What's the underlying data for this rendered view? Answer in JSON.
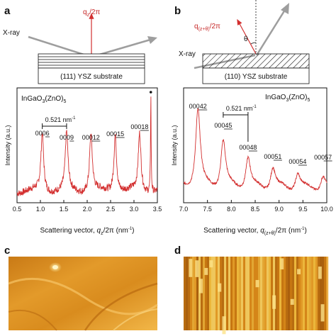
{
  "panels": {
    "a": {
      "letter": "a",
      "xray_label": "X-ray",
      "q_label": "q₂/2π",
      "q_label_main": "q",
      "q_label_sub": "z",
      "q_label_tail": "/2π",
      "substrate_label": "(111) YSZ substrate"
    },
    "b": {
      "letter": "b",
      "xray_label": "X-ray",
      "q_label_main": "q",
      "q_label_sub": "(z+θ)",
      "q_label_tail": "/2π",
      "theta_label": "θ",
      "substrate_label": "(110) YSZ substrate"
    },
    "c": {
      "letter": "c"
    },
    "d": {
      "letter": "d"
    }
  },
  "chart_data": [
    {
      "type": "line",
      "title": "InGaO3(ZnO)5",
      "title_main": "InGaO",
      "title_sub1": "3",
      "title_mid": "(ZnO)",
      "title_sub2": "5",
      "ylabel": "Intensity (a.u.)",
      "xlabel_main": "Scattering vector, ",
      "xlabel_q": "q",
      "xlabel_sub": "z",
      "xlabel_tail": "/2π (nm",
      "xlabel_exp": "-1",
      "xlabel_end": ")",
      "xlim": [
        0.5,
        3.5
      ],
      "xticks": [
        "0.5",
        "1.0",
        "1.5",
        "2.0",
        "2.5",
        "3.0",
        "3.5"
      ],
      "spacing_label": "0.521 nm",
      "spacing_exp": "-1",
      "peaks": [
        {
          "label": "0006",
          "x": 1.04
        },
        {
          "label": "0009",
          "x": 1.56
        },
        {
          "label": "00012",
          "x": 2.08
        },
        {
          "label": "00015",
          "x": 2.6
        },
        {
          "label": "00018",
          "x": 3.12
        }
      ],
      "substrate_peak_x": 3.36,
      "series_color": "#d32f2f"
    },
    {
      "type": "line",
      "title": "InGaO3(ZnO)5",
      "title_main": "InGaO",
      "title_sub1": "3",
      "title_mid": "(ZnO)",
      "title_sub2": "5",
      "ylabel": "Intensity (a.u.)",
      "xlabel_main": "Scattering vector, ",
      "xlabel_q": "q",
      "xlabel_sub": "(z+θ)",
      "xlabel_tail": "/2π (nm",
      "xlabel_exp": "-1",
      "xlabel_end": ")",
      "xlim": [
        7.0,
        10.0
      ],
      "xticks": [
        "7.0",
        "7.5",
        "8.0",
        "8.5",
        "9.0",
        "9.5",
        "10.0"
      ],
      "spacing_label": "0.521 nm",
      "spacing_exp": "-1",
      "peaks": [
        {
          "label": "00042",
          "x": 7.3
        },
        {
          "label": "00045",
          "x": 7.83
        },
        {
          "label": "00048",
          "x": 8.35
        },
        {
          "label": "00051",
          "x": 8.87
        },
        {
          "label": "00054",
          "x": 9.39
        },
        {
          "label": "00057",
          "x": 9.92
        }
      ],
      "series_color": "#d32f2f"
    }
  ]
}
